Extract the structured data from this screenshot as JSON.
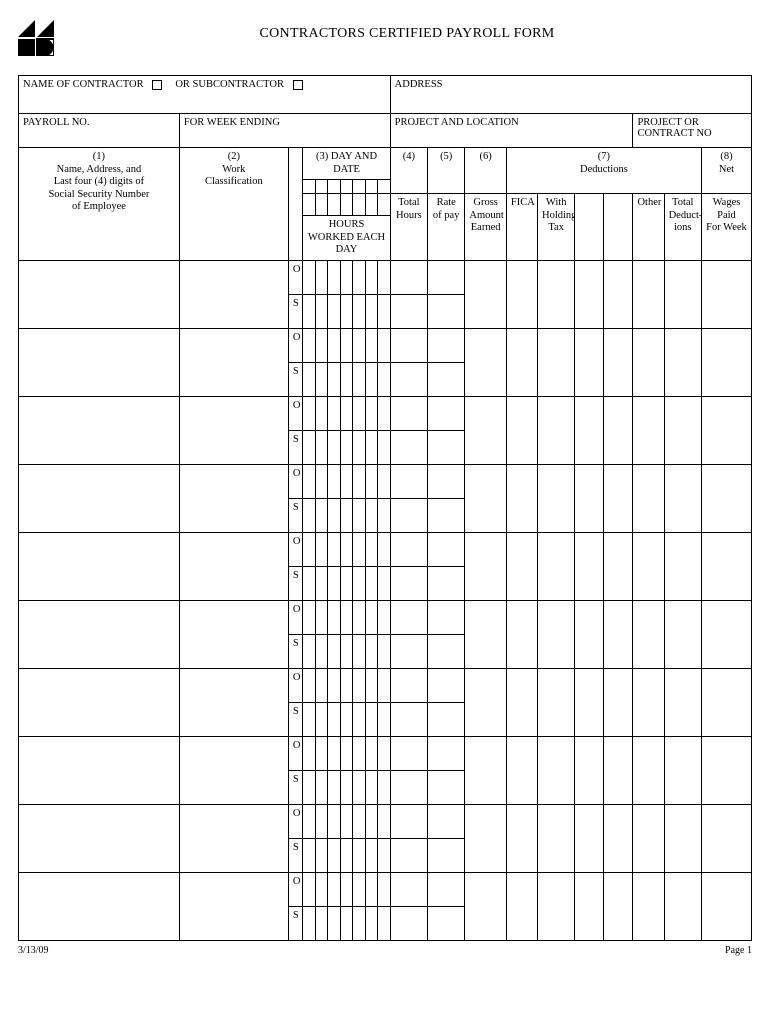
{
  "title": "CONTRACTORS CERTIFIED PAYROLL FORM",
  "top": {
    "name_of_contractor": "NAME OF CONTRACTOR",
    "or_subcontractor": "OR SUBCONTRACTOR",
    "address": "ADDRESS",
    "payroll_no": "PAYROLL NO.",
    "for_week_ending": "FOR WEEK ENDING",
    "project_and_location": "PROJECT AND LOCATION",
    "project_or_contract_no": "PROJECT OR CONTRACT NO"
  },
  "cols": {
    "c1_num": "(1)",
    "c1a": "Name, Address, and",
    "c1b": "Last four (4) digits of",
    "c1c": "Social Security Number",
    "c1d": "of Employee",
    "c2_num": "(2)",
    "c2a": "Work",
    "c2b": "Classification",
    "c3_top": "(3) DAY AND DATE",
    "c3_bot": "HOURS WORKED EACH DAY",
    "c4_num": "(4)",
    "c4a": "Total",
    "c4b": "Hours",
    "c5_num": "(5)",
    "c5a": "Rate",
    "c5b": "of pay",
    "c6_num": "(6)",
    "c6a": "Gross",
    "c6b": "Amount",
    "c6c": "Earned",
    "c7_num": "(7)",
    "c7_label": "Deductions",
    "c7_fica": "FICA",
    "c7_wh1": "With",
    "c7_wh2": "Holding",
    "c7_wh3": "Tax",
    "c7_other": "Other",
    "c7_td1": "Total",
    "c7_td2": "Deduct-",
    "c7_td3": "ions",
    "c8_num": "(8)",
    "c8a": "Net",
    "c8b": "Wages",
    "c8c": "Paid",
    "c8d": "For Week"
  },
  "os": {
    "o": "O",
    "s": "S"
  },
  "footer": {
    "date": "3/13/09",
    "page": "Page 1"
  },
  "style": {
    "page_bg": "#ffffff",
    "line_color": "#000000",
    "font": "Times New Roman",
    "num_employee_rows": 10
  },
  "colwidths": {
    "name": 155,
    "work": 105,
    "os": 14,
    "day": 12,
    "total_hours": 36,
    "rate": 36,
    "gross": 40,
    "fica": 30,
    "wh": 36,
    "blank1": 28,
    "blank2": 28,
    "other": 30,
    "total_ded": 36,
    "net": 48
  }
}
